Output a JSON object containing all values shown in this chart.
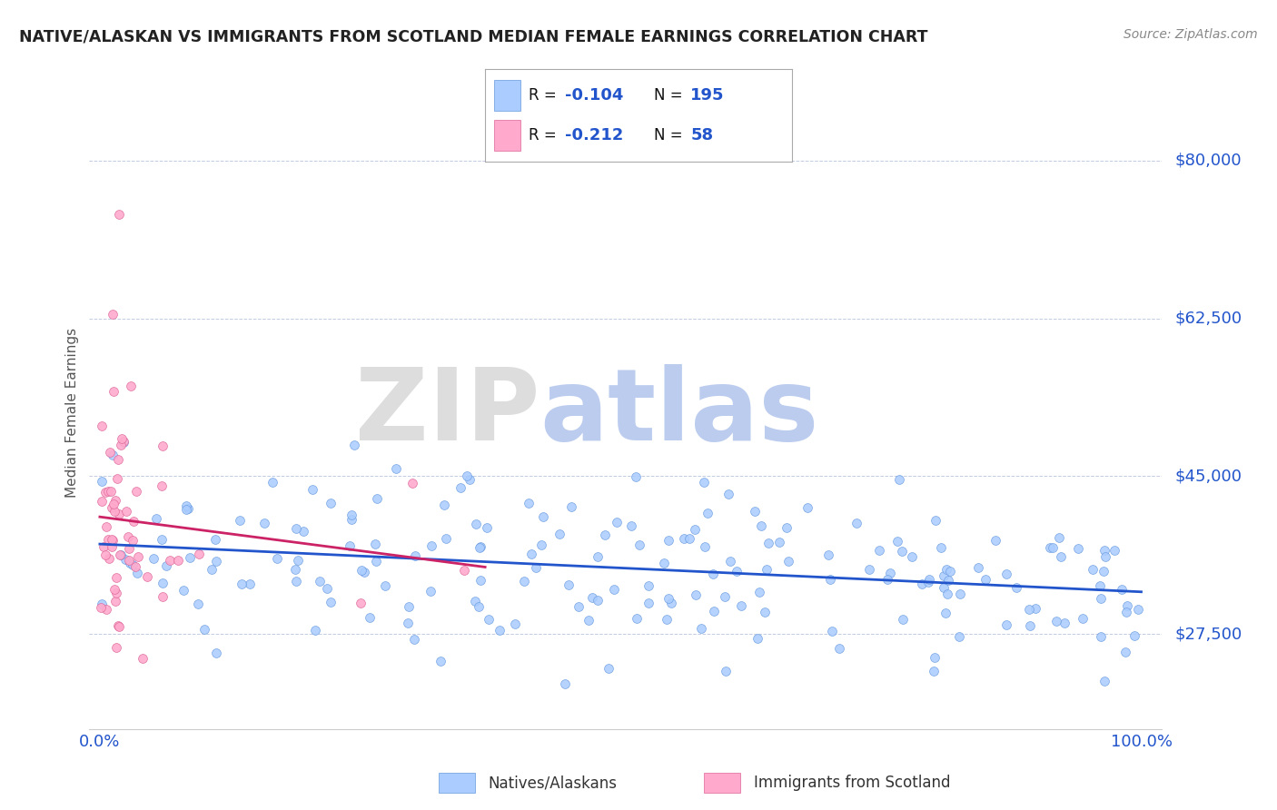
{
  "title": "NATIVE/ALASKAN VS IMMIGRANTS FROM SCOTLAND MEDIAN FEMALE EARNINGS CORRELATION CHART",
  "source": "Source: ZipAtlas.com",
  "ylabel": "Median Female Earnings",
  "ytick_vals": [
    27500,
    45000,
    62500,
    80000
  ],
  "ytick_labels": [
    "$27,500",
    "$45,000",
    "$62,500",
    "$80,000"
  ],
  "blue_color": "#aaccff",
  "blue_edge_color": "#6699dd",
  "pink_color": "#ffaacc",
  "pink_edge_color": "#dd6699",
  "blue_line_color": "#2255cc",
  "pink_line_color": "#cc2266",
  "label_color": "#2255cc",
  "axis_tick_color": "#2255cc",
  "title_color": "#222222",
  "source_color": "#888888",
  "watermark_zip_color": "#ddddee",
  "watermark_atlas_color": "#bbccee",
  "dot_size": 50,
  "ylim_low": 17000,
  "ylim_high": 87000,
  "legend_blue_r": "-0.104",
  "legend_blue_n": "195",
  "legend_pink_r": "-0.212",
  "legend_pink_n": "58",
  "bottom_label1": "Natives/Alaskans",
  "bottom_label2": "Immigrants from Scotland"
}
